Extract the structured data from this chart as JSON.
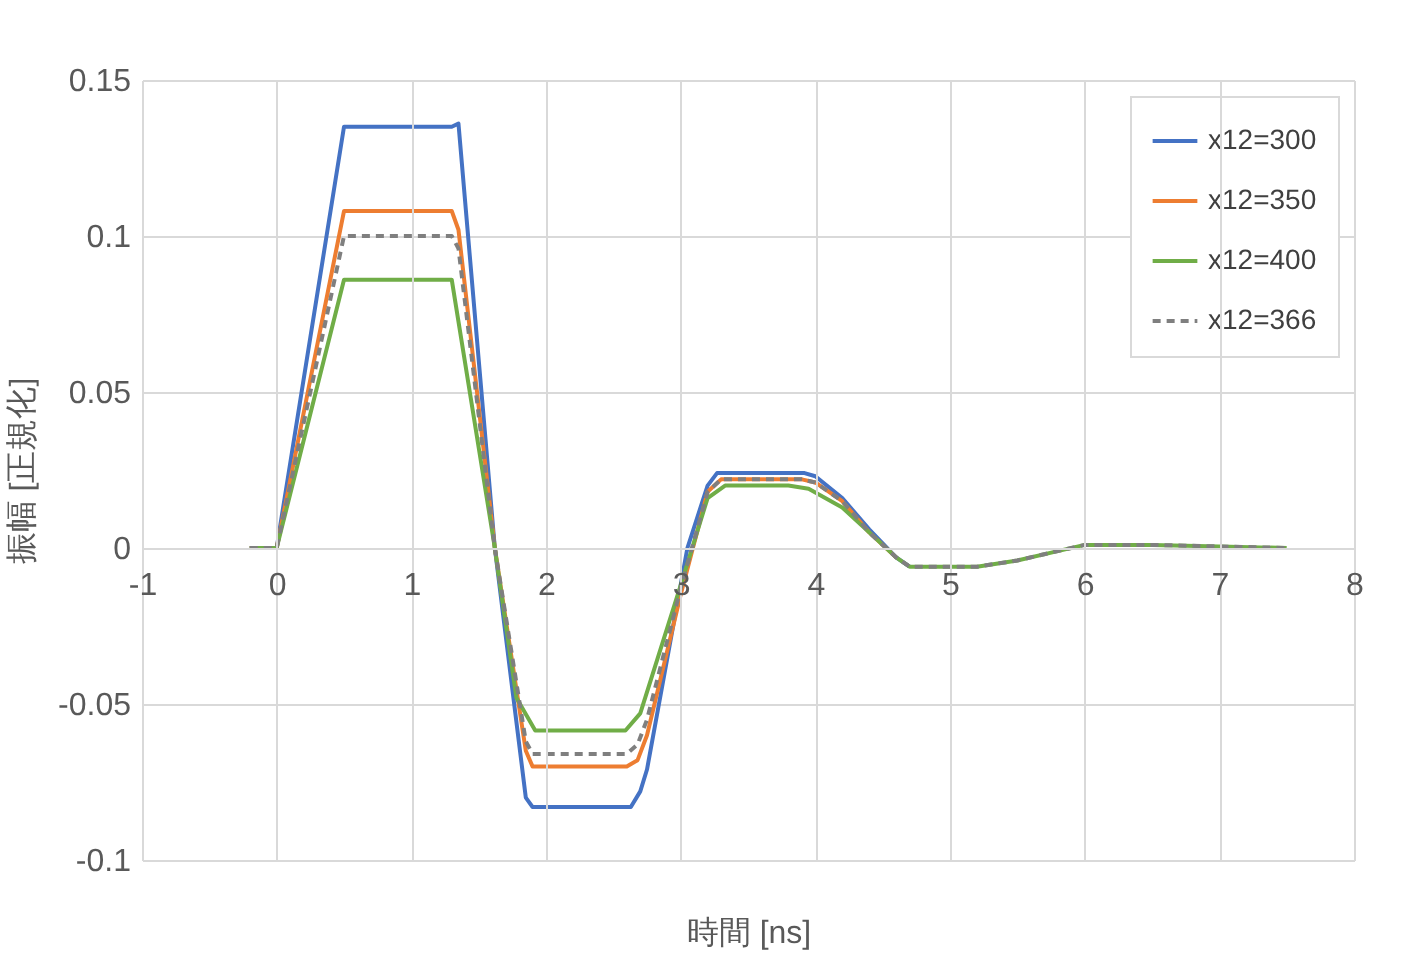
{
  "chart_data": {
    "type": "line",
    "xlabel": "時間 [ns]",
    "ylabel": "振幅 [正規化]",
    "xlim": [
      -1,
      8
    ],
    "xticks": [
      -1,
      0,
      1,
      2,
      3,
      4,
      5,
      6,
      7,
      8
    ],
    "ylim": [
      -0.1,
      0.15
    ],
    "yticks": [
      -0.1,
      -0.05,
      0,
      0.05,
      0.1,
      0.15
    ],
    "grid": true,
    "legend": "top right",
    "marker": "none",
    "series": [
      {
        "name": "x12=300",
        "color": "#4472c4",
        "line_style": "solid",
        "x": [
          -0.2,
          0,
          0.5,
          1.3,
          1.35,
          1.62,
          1.85,
          1.9,
          2.63,
          2.7,
          2.75,
          3.05,
          3.2,
          3.27,
          3.92,
          4.0,
          4.2,
          4.4,
          4.6,
          4.7
        ],
        "values": [
          0,
          0,
          0.135,
          0.135,
          0.136,
          0,
          -0.08,
          -0.083,
          -0.083,
          -0.078,
          -0.071,
          0,
          0.02,
          0.024,
          0.024,
          0.023,
          0.016,
          0.006,
          -0.003,
          -0.006
        ]
      },
      {
        "name": "x12=350",
        "color": "#ed7d31",
        "line_style": "solid",
        "x": [
          -0.2,
          0,
          0.5,
          1.3,
          1.35,
          1.62,
          1.85,
          1.9,
          2.6,
          2.68,
          2.75,
          3.0,
          3.2,
          3.3,
          3.9,
          4.0,
          4.2,
          4.4,
          4.6
        ],
        "values": [
          0,
          0,
          0.108,
          0.108,
          0.102,
          0,
          -0.065,
          -0.07,
          -0.07,
          -0.068,
          -0.06,
          -0.015,
          0.018,
          0.022,
          0.022,
          0.021,
          0.015,
          0.005,
          -0.003
        ]
      },
      {
        "name": "x12=400",
        "color": "#70ad47",
        "line_style": "solid",
        "x": [
          -0.2,
          0,
          0.5,
          1.3,
          1.62,
          1.78,
          1.92,
          2.59,
          2.7,
          3.0,
          3.2,
          3.33,
          3.8,
          3.95,
          4.2,
          4.4,
          4.6,
          4.7,
          5.2,
          5.5,
          5.8,
          6.0,
          6.5,
          7.0,
          7.5
        ],
        "values": [
          0,
          0,
          0.086,
          0.086,
          0,
          -0.048,
          -0.0585,
          -0.0585,
          -0.053,
          -0.012,
          0.016,
          0.02,
          0.02,
          0.019,
          0.013,
          0.005,
          -0.003,
          -0.006,
          -0.006,
          -0.004,
          -0.001,
          0.001,
          0.001,
          0.0005,
          0
        ]
      },
      {
        "name": "x12=366",
        "color": "#7f7f7f",
        "line_style": "dashed",
        "x": [
          -0.2,
          0,
          0.5,
          1.3,
          1.35,
          1.62,
          1.85,
          1.9,
          2.6,
          2.68,
          2.75,
          3.0,
          3.2,
          3.3,
          3.9,
          4.0,
          4.2,
          4.4,
          4.6,
          4.7,
          5.2,
          5.5,
          5.8,
          6.0,
          6.5,
          7.0,
          7.5
        ],
        "values": [
          0,
          0,
          0.1,
          0.1,
          0.096,
          0,
          -0.062,
          -0.066,
          -0.066,
          -0.063,
          -0.055,
          -0.013,
          0.018,
          0.022,
          0.022,
          0.021,
          0.015,
          0.005,
          -0.003,
          -0.006,
          -0.006,
          -0.004,
          -0.001,
          0.001,
          0.001,
          0.0005,
          0
        ]
      }
    ]
  }
}
